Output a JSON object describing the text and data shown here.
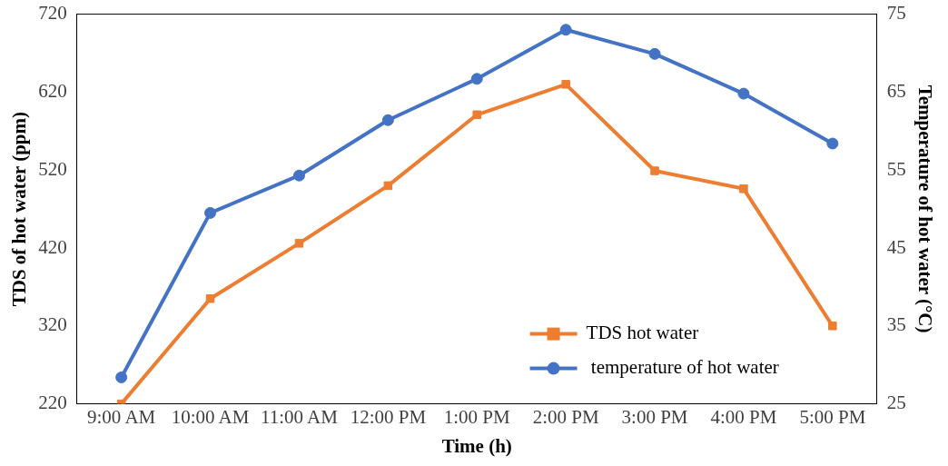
{
  "chart_data": {
    "type": "line",
    "xlabel": "Time (h)",
    "ylabel": "TDS of hot water (ppm)",
    "y2label": "Temperature of hot water (°C)",
    "categories": [
      "9:00 AM",
      "10:00 AM",
      "11:00 AM",
      "12:00 PM",
      "1:00 PM",
      "2:00 PM",
      "3:00 PM",
      "4:00 PM",
      "5:00 PM"
    ],
    "series": [
      {
        "name": "TDS hot water",
        "color": "#ed7d31",
        "marker": "square",
        "values": [
          220,
          355,
          426,
          500,
          591,
          630,
          519,
          496,
          320
        ]
      },
      {
        "name": " temperature of hot water",
        "color": "#4472c4",
        "marker": "circle",
        "axis": "y2",
        "values": [
          28.4,
          49.5,
          54.3,
          61.4,
          66.7,
          73,
          69.9,
          64.8,
          58.4
        ]
      }
    ],
    "ylim": [
      220,
      720
    ],
    "yticks": [
      220,
      320,
      420,
      520,
      620,
      720
    ],
    "y2lim": [
      25,
      75
    ],
    "y2ticks": [
      25,
      35,
      45,
      55,
      65,
      75
    ],
    "grid": false,
    "legend": "bottom right",
    "line_style": "solid"
  }
}
